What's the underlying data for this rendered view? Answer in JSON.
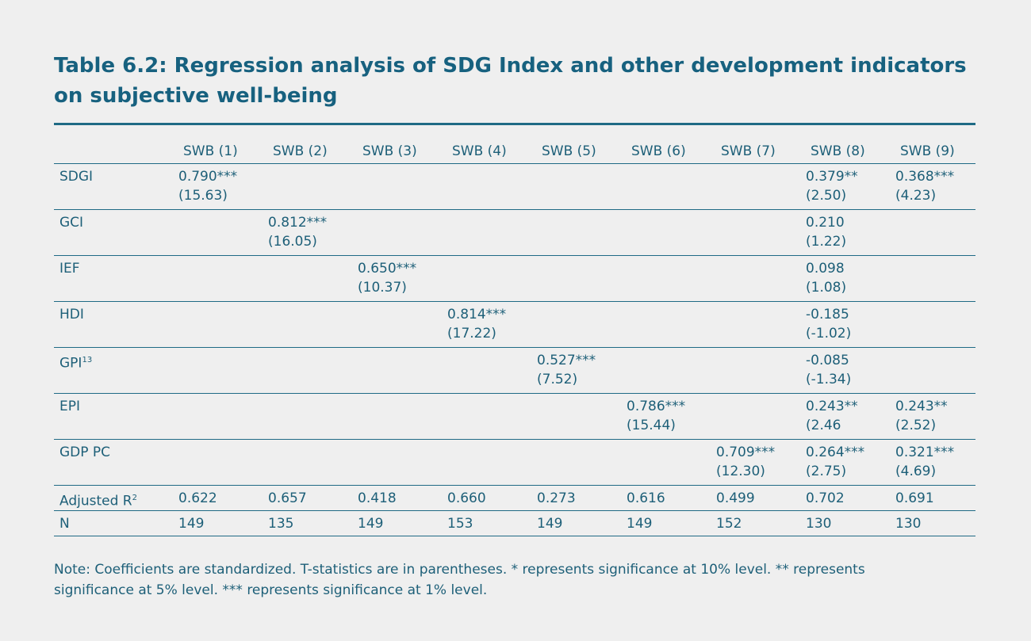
{
  "title": [
    "Table 6.2: Regression analysis of SDG Index and other development indicators",
    "on subjective well-being"
  ],
  "table": {
    "columns": [
      "SWB (1)",
      "SWB (2)",
      "SWB (3)",
      "SWB (4)",
      "SWB (5)",
      "SWB (6)",
      "SWB (7)",
      "SWB (8)",
      "SWB (9)"
    ],
    "rows": [
      {
        "label": "SDGI",
        "cells": [
          [
            "0.790***",
            "(15.63)"
          ],
          null,
          null,
          null,
          null,
          null,
          null,
          [
            "0.379**",
            "(2.50)"
          ],
          [
            "0.368***",
            "(4.23)"
          ]
        ]
      },
      {
        "label": "GCI",
        "cells": [
          null,
          [
            "0.812***",
            "(16.05)"
          ],
          null,
          null,
          null,
          null,
          null,
          [
            "0.210",
            "(1.22)"
          ],
          null
        ]
      },
      {
        "label": "IEF",
        "cells": [
          null,
          null,
          [
            "0.650***",
            "(10.37)"
          ],
          null,
          null,
          null,
          null,
          [
            "0.098",
            "(1.08)"
          ],
          null
        ]
      },
      {
        "label": "HDI",
        "cells": [
          null,
          null,
          null,
          [
            "0.814***",
            "(17.22)"
          ],
          null,
          null,
          null,
          [
            "-0.185",
            "(-1.02)"
          ],
          null
        ]
      },
      {
        "label": "GPI",
        "sup": "13",
        "cells": [
          null,
          null,
          null,
          null,
          [
            "0.527***",
            "(7.52)"
          ],
          null,
          null,
          [
            "-0.085",
            "(-1.34)"
          ],
          null
        ]
      },
      {
        "label": "EPI",
        "cells": [
          null,
          null,
          null,
          null,
          null,
          [
            "0.786***",
            "(15.44)"
          ],
          null,
          [
            "0.243**",
            "(2.46"
          ],
          [
            "0.243**",
            "(2.52)"
          ]
        ]
      },
      {
        "label": "GDP PC",
        "cells": [
          null,
          null,
          null,
          null,
          null,
          null,
          [
            "0.709***",
            "(12.30)"
          ],
          [
            "0.264***",
            "(2.75)"
          ],
          [
            "0.321***",
            "(4.69)"
          ]
        ]
      },
      {
        "label": "Adjusted R",
        "sup": "2",
        "cells": [
          [
            "0.622"
          ],
          [
            "0.657"
          ],
          [
            "0.418"
          ],
          [
            "0.660"
          ],
          [
            "0.273"
          ],
          [
            "0.616"
          ],
          [
            "0.499"
          ],
          [
            "0.702"
          ],
          [
            "0.691"
          ]
        ]
      },
      {
        "label": "N",
        "cells": [
          [
            "149"
          ],
          [
            "135"
          ],
          [
            "149"
          ],
          [
            "153"
          ],
          [
            "149"
          ],
          [
            "149"
          ],
          [
            "152"
          ],
          [
            "130"
          ],
          [
            "130"
          ]
        ]
      }
    ]
  },
  "note": [
    "Note: Coefficients are standardized. T-statistics are in parentheses. * represents significance at 10% level. ** represents",
    "significance at 5% level. *** represents significance at 1% level."
  ]
}
